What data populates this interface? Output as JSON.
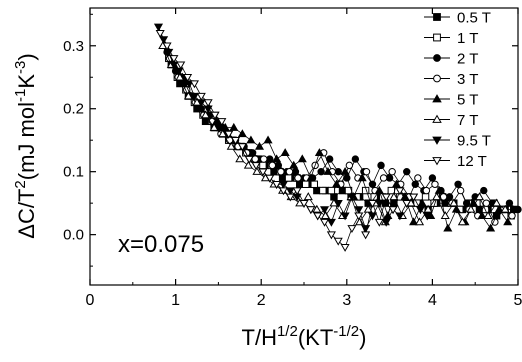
{
  "chart_data": {
    "type": "scatter",
    "xlabel": {
      "base": "T/H",
      "exp1": "1/2",
      "mid": "(KT",
      "exp2": "-1/2",
      "end": ")"
    },
    "ylabel": {
      "base": "ΔC/T",
      "exp1": "2",
      "mid": "(mJ mol",
      "exp2": "-1",
      "mid2": "K",
      "exp3": "-3",
      "end": ")"
    },
    "annotation": "x=0.075",
    "xlim": [
      0,
      5
    ],
    "ylim": [
      -0.08,
      0.36
    ],
    "x_ticks": [
      0,
      1,
      2,
      3,
      4,
      5
    ],
    "y_ticks": [
      0.0,
      0.1,
      0.2,
      0.3
    ],
    "x_tick_labels": [
      "0",
      "1",
      "2",
      "3",
      "4",
      "5"
    ],
    "y_tick_labels": [
      "0.0",
      "0.1",
      "0.2",
      "0.3"
    ],
    "grid": false,
    "legend_position": "top-right",
    "series": [
      {
        "name": "0.5 T",
        "marker": "square",
        "filled": true,
        "x": [
          0.95,
          1.05,
          1.15,
          1.25,
          1.35,
          1.45,
          1.55,
          1.65,
          1.75,
          1.85,
          1.95,
          2.05,
          2.15,
          2.25,
          2.35,
          2.45,
          2.55,
          2.65,
          2.75,
          2.85,
          2.95,
          3.05,
          3.15,
          3.25,
          3.35,
          3.45,
          3.55,
          3.65,
          3.75,
          3.85,
          3.95,
          4.05,
          4.15,
          4.25,
          4.35,
          4.45,
          4.55,
          4.65,
          4.75,
          4.85,
          4.95
        ],
        "y": [
          0.27,
          0.24,
          0.22,
          0.2,
          0.18,
          0.17,
          0.16,
          0.15,
          0.14,
          0.13,
          0.12,
          0.11,
          0.1,
          0.09,
          0.09,
          0.08,
          0.08,
          0.07,
          0.07,
          0.06,
          0.07,
          0.06,
          0.06,
          0.05,
          0.06,
          0.05,
          0.05,
          0.06,
          0.05,
          0.05,
          0.04,
          0.05,
          0.05,
          0.05,
          0.04,
          0.05,
          0.04,
          0.04,
          0.03,
          0.04,
          0.04
        ]
      },
      {
        "name": "1 T",
        "marker": "square",
        "filled": false,
        "x": [
          0.92,
          1.02,
          1.12,
          1.22,
          1.32,
          1.42,
          1.52,
          1.62,
          1.72,
          1.82,
          1.92,
          2.02,
          2.12,
          2.22,
          2.32,
          2.42,
          2.52,
          2.62,
          2.72,
          2.82,
          2.92,
          3.02,
          3.12,
          3.22,
          3.32,
          3.42,
          3.52,
          3.62,
          3.72,
          3.82,
          3.92,
          4.02,
          4.12,
          4.22,
          4.32,
          4.42,
          4.52,
          4.62,
          4.72,
          4.82,
          4.92
        ],
        "y": [
          0.28,
          0.25,
          0.23,
          0.21,
          0.19,
          0.18,
          0.17,
          0.15,
          0.14,
          0.13,
          0.12,
          0.11,
          0.11,
          0.1,
          0.09,
          0.09,
          0.08,
          0.08,
          0.07,
          0.07,
          0.08,
          0.07,
          0.06,
          0.07,
          0.06,
          0.06,
          0.07,
          0.06,
          0.06,
          0.05,
          0.06,
          0.05,
          0.06,
          0.05,
          0.04,
          0.05,
          0.05,
          0.04,
          0.05,
          0.04,
          0.03
        ]
      },
      {
        "name": "2 T",
        "marker": "circle",
        "filled": true,
        "x": [
          0.9,
          1.0,
          1.1,
          1.2,
          1.3,
          1.4,
          1.5,
          1.6,
          1.7,
          1.8,
          1.9,
          2.0,
          2.1,
          2.2,
          2.3,
          2.4,
          2.5,
          2.6,
          2.7,
          2.8,
          2.9,
          3.0,
          3.1,
          3.2,
          3.3,
          3.4,
          3.5,
          3.6,
          3.7,
          3.8,
          3.9,
          4.0,
          4.1,
          4.2,
          4.3,
          4.4,
          4.5,
          4.6,
          4.7,
          4.8,
          4.9,
          5.0
        ],
        "y": [
          0.29,
          0.26,
          0.24,
          0.22,
          0.2,
          0.19,
          0.17,
          0.16,
          0.15,
          0.14,
          0.13,
          0.12,
          0.12,
          0.11,
          0.1,
          0.1,
          0.09,
          0.09,
          0.1,
          0.12,
          0.1,
          0.09,
          0.12,
          0.1,
          0.08,
          0.11,
          0.09,
          0.08,
          0.1,
          0.08,
          0.07,
          0.09,
          0.07,
          0.06,
          0.08,
          0.05,
          0.06,
          0.07,
          0.05,
          0.04,
          0.05,
          0.04
        ]
      },
      {
        "name": "3 T",
        "marker": "circle",
        "filled": false,
        "x": [
          0.93,
          1.03,
          1.13,
          1.23,
          1.33,
          1.43,
          1.53,
          1.63,
          1.73,
          1.83,
          1.93,
          2.03,
          2.13,
          2.23,
          2.33,
          2.43,
          2.53,
          2.63,
          2.73,
          2.83,
          2.93,
          3.03,
          3.13,
          3.23,
          3.33,
          3.43,
          3.53,
          3.63,
          3.73,
          3.83,
          3.93,
          4.03,
          4.13,
          4.23,
          4.33,
          4.43,
          4.53,
          4.63,
          4.73,
          4.83,
          4.93
        ],
        "y": [
          0.28,
          0.25,
          0.23,
          0.21,
          0.19,
          0.18,
          0.16,
          0.15,
          0.14,
          0.13,
          0.12,
          0.12,
          0.11,
          0.1,
          0.1,
          0.09,
          0.09,
          0.11,
          0.13,
          0.1,
          0.08,
          0.11,
          0.09,
          0.1,
          0.07,
          0.09,
          0.1,
          0.08,
          0.06,
          0.09,
          0.07,
          0.08,
          0.06,
          0.05,
          0.07,
          0.04,
          0.03,
          0.05,
          0.02,
          0.04,
          0.03
        ]
      },
      {
        "name": "5 T",
        "marker": "triangle",
        "filled": true,
        "x": [
          0.88,
          0.98,
          1.08,
          1.18,
          1.28,
          1.38,
          1.48,
          1.58,
          1.68,
          1.78,
          1.88,
          1.98,
          2.08,
          2.18,
          2.28,
          2.38,
          2.48,
          2.58,
          2.68,
          2.78,
          2.88,
          2.98,
          3.08,
          3.18,
          3.28,
          3.38,
          3.48,
          3.58,
          3.68,
          3.78,
          3.88,
          3.98,
          4.08,
          4.18,
          4.28,
          4.38,
          4.48,
          4.58,
          4.68,
          4.78,
          4.88
        ],
        "y": [
          0.3,
          0.27,
          0.25,
          0.22,
          0.2,
          0.19,
          0.18,
          0.17,
          0.17,
          0.16,
          0.15,
          0.14,
          0.15,
          0.12,
          0.13,
          0.11,
          0.12,
          0.09,
          0.13,
          0.1,
          0.08,
          0.1,
          0.06,
          0.09,
          0.05,
          0.07,
          0.03,
          0.08,
          0.06,
          0.02,
          0.05,
          0.03,
          0.07,
          0.01,
          0.04,
          0.02,
          0.05,
          0.03,
          0.01,
          0.04,
          0.02
        ]
      },
      {
        "name": "7 T",
        "marker": "triangle",
        "filled": false,
        "x": [
          0.85,
          0.95,
          1.05,
          1.15,
          1.25,
          1.35,
          1.45,
          1.55,
          1.65,
          1.75,
          1.85,
          1.95,
          2.05,
          2.15,
          2.25,
          2.35,
          2.45,
          2.55,
          2.65,
          2.75,
          2.85,
          2.95,
          3.05,
          3.15,
          3.25,
          3.35,
          3.45,
          3.55,
          3.65,
          3.75,
          3.85,
          3.95,
          4.05,
          4.15,
          4.25,
          4.35,
          4.45,
          4.55,
          4.65,
          4.75,
          4.85
        ],
        "y": [
          0.3,
          0.27,
          0.25,
          0.22,
          0.21,
          0.19,
          0.17,
          0.16,
          0.14,
          0.12,
          0.11,
          0.1,
          0.09,
          0.08,
          0.07,
          0.06,
          0.05,
          0.06,
          0.04,
          0.03,
          0.05,
          0.03,
          0.06,
          0.02,
          0.04,
          0.05,
          0.02,
          0.06,
          0.03,
          0.05,
          0.02,
          0.04,
          0.06,
          0.03,
          0.05,
          0.02,
          0.04,
          0.06,
          0.03,
          0.05,
          0.04
        ]
      },
      {
        "name": "9.5 T",
        "marker": "triangle-down",
        "filled": true,
        "x": [
          0.8,
          0.86,
          0.92,
          0.98,
          1.04,
          1.1,
          1.16,
          1.22,
          1.3,
          1.38,
          1.46,
          1.54,
          1.62,
          1.7,
          1.78,
          1.86,
          1.94,
          2.02,
          2.1,
          2.18,
          2.26,
          2.34,
          2.42,
          2.5,
          2.58,
          2.66,
          2.74,
          2.82,
          2.9,
          2.98,
          3.06,
          3.14,
          3.22,
          3.3,
          3.38,
          3.46,
          3.54,
          3.62,
          3.7,
          3.78,
          3.86,
          3.94
        ],
        "y": [
          0.33,
          0.31,
          0.29,
          0.27,
          0.26,
          0.25,
          0.24,
          0.22,
          0.21,
          0.2,
          0.19,
          0.17,
          0.16,
          0.15,
          0.14,
          0.12,
          0.11,
          0.1,
          0.09,
          0.08,
          0.08,
          0.07,
          0.06,
          0.05,
          0.04,
          0.03,
          0.04,
          0.02,
          0.05,
          0.03,
          0.06,
          0.04,
          0.01,
          0.03,
          0.05,
          0.02,
          0.04,
          0.03,
          0.05,
          0.06,
          0.04,
          0.03
        ]
      },
      {
        "name": "12 T",
        "marker": "triangle-down",
        "filled": false,
        "x": [
          0.82,
          0.9,
          0.98,
          1.06,
          1.14,
          1.22,
          1.3,
          1.38,
          1.46,
          1.54,
          1.62,
          1.7,
          1.78,
          1.86,
          1.94,
          2.02,
          2.1,
          2.18,
          2.26,
          2.34,
          2.42,
          2.5,
          2.58,
          2.66,
          2.74,
          2.82,
          2.9,
          2.98,
          3.06,
          3.14,
          3.22,
          3.3,
          3.38,
          3.46,
          3.54,
          3.62,
          3.7,
          3.78
        ],
        "y": [
          0.32,
          0.3,
          0.28,
          0.27,
          0.25,
          0.24,
          0.22,
          0.21,
          0.19,
          0.18,
          0.16,
          0.15,
          0.14,
          0.12,
          0.11,
          0.1,
          0.09,
          0.08,
          0.07,
          0.06,
          0.07,
          0.05,
          0.04,
          0.03,
          0.02,
          0.0,
          -0.01,
          -0.02,
          0.01,
          0.03,
          0.0,
          0.05,
          0.02,
          0.06,
          0.04,
          0.07,
          0.05,
          0.06
        ]
      }
    ]
  }
}
